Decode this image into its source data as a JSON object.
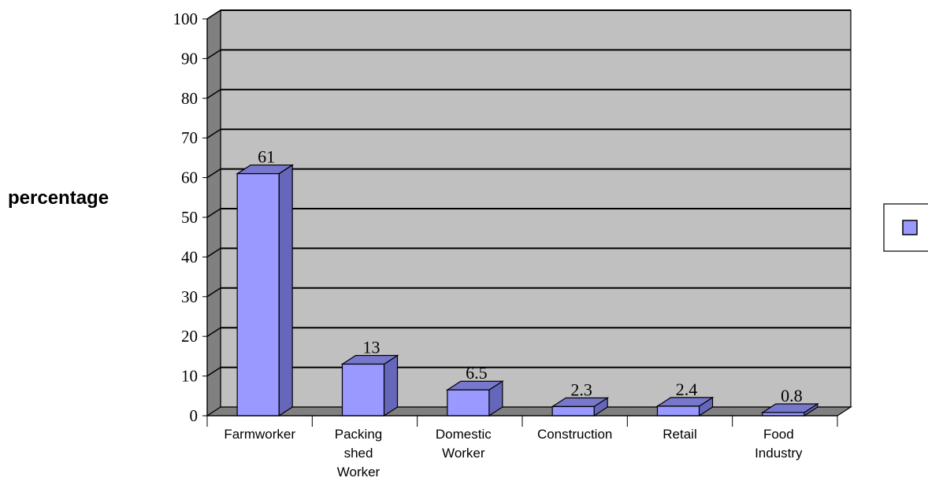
{
  "chart_data": {
    "type": "bar",
    "categories": [
      [
        "Farmworker"
      ],
      [
        "Packing",
        "shed",
        "Worker"
      ],
      [
        "Domestic",
        "Worker"
      ],
      [
        "Construction"
      ],
      [
        "Retail"
      ],
      [
        "Food",
        "Industry"
      ]
    ],
    "values": [
      61,
      13,
      6.5,
      2.3,
      2.4,
      0.8
    ],
    "data_labels": [
      "61",
      "13",
      "6.5",
      "2.3",
      "2.4",
      "0.8"
    ],
    "title": "",
    "xlabel": "",
    "ylabel": "percentage",
    "ylim": [
      0,
      100
    ],
    "yticks": [
      0,
      10,
      20,
      30,
      40,
      50,
      60,
      70,
      80,
      90,
      100
    ],
    "grid": true,
    "legend": {
      "placement": "right",
      "entries": [
        ""
      ]
    },
    "colors": {
      "bar_front": "#9999ff",
      "bar_side": "#6666bb",
      "bar_top": "#7777cc",
      "wall": "#c0c0c0",
      "wall_side": "#808080",
      "floor": "#808080",
      "gridline": "#000000"
    }
  }
}
